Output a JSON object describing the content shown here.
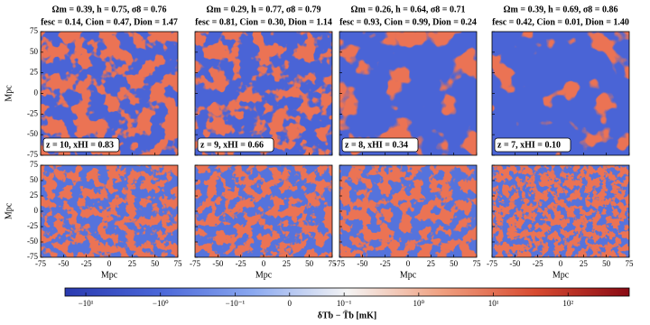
{
  "panels": [
    {
      "title_line1": "Ωm = 0.39, h = 0.75, σ8 = 0.76",
      "title_line2": "fesc = 0.14, Cion = 0.47, Dion = 1.47",
      "annotation": "z = 10, xHI = 0.83"
    },
    {
      "title_line1": "Ωm = 0.29, h = 0.77, σ8 = 0.79",
      "title_line2": "fesc = 0.81, Cion = 0.30, Dion = 1.14",
      "annotation": "z = 9, xHI = 0.66"
    },
    {
      "title_line1": "Ωm = 0.26, h = 0.64, σ8 = 0.71",
      "title_line2": "fesc = 0.93, Cion = 0.99, Dion = 0.24",
      "annotation": "z = 8, xHI = 0.34"
    },
    {
      "title_line1": "Ωm = 0.39, h = 0.69, σ8 = 0.86",
      "title_line2": "fesc = 0.42, Cion = 0.01, Dion = 1.40",
      "annotation": "z = 7, xHI = 0.10"
    }
  ],
  "xlim": [
    -75,
    75
  ],
  "ylim": [
    -75,
    75
  ],
  "xticks": [
    -75,
    -50,
    -25,
    0,
    25,
    50,
    75
  ],
  "yticks": [
    -75,
    -50,
    -25,
    0,
    25,
    50,
    75
  ],
  "xlabel": "Mpc",
  "ylabel": "Mpc",
  "colorbar": {
    "label": "δTb − T̄b [mK]",
    "scale": "symlog",
    "linthresh": 0.1,
    "linscale": 0.73,
    "clim": [
      -19,
      660
    ],
    "colormap": [
      "#2a3ab0",
      "#4a66d8",
      "#8aa8f0",
      "#f4f4f4",
      "#f0a080",
      "#d84a30",
      "#8a0a14"
    ],
    "ticks": [
      {
        "value": -10,
        "label": "−10¹"
      },
      {
        "value": -1,
        "label": "−10⁰"
      },
      {
        "value": -0.1,
        "label": "−10⁻¹"
      },
      0,
      {
        "value": 0.1,
        "label": "10⁻¹"
      },
      {
        "value": 1,
        "label": "10⁰"
      },
      {
        "value": 10,
        "label": "10¹"
      },
      {
        "value": 100,
        "label": "10²"
      }
    ]
  }
}
